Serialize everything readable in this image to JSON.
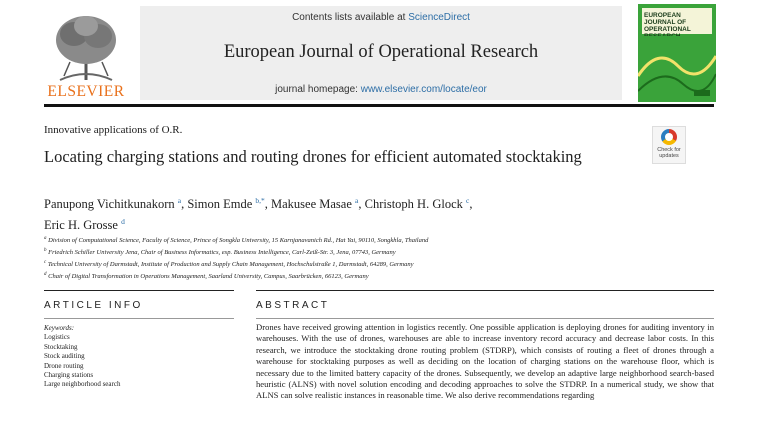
{
  "header": {
    "publisher": "ELSEVIER",
    "contents_prefix": "Contents lists available at ",
    "contents_link": "ScienceDirect",
    "journal_title": "European Journal of Operational Research",
    "homepage_prefix": "journal homepage: ",
    "homepage_link": "www.elsevier.com/locate/eor",
    "cover_title": "EUROPEAN JOURNAL OF OPERATIONAL RESEARCH",
    "colors": {
      "publisher_orange": "#e9711c",
      "link_blue": "#2d6ea6",
      "cover_green": "#3aa33a"
    }
  },
  "section_label": "Innovative applications of O.R.",
  "crossmark": {
    "label": "Check for updates"
  },
  "paper": {
    "title": "Locating charging stations and routing drones for efficient automated stocktaking",
    "authors": [
      {
        "name": "Panupong Vichitkunakorn",
        "sup": "a",
        "sep": ", "
      },
      {
        "name": "Simon Emde",
        "sup": "b,*",
        "sep": ", "
      },
      {
        "name": "Makusee Masae",
        "sup": "a",
        "sep": ", "
      },
      {
        "name": "Christoph H. Glock",
        "sup": "c",
        "sep": ", "
      },
      {
        "name": "Eric H. Grosse",
        "sup": "d",
        "sep": ""
      }
    ],
    "affiliations": [
      {
        "sup": "a",
        "text": "Division of Computational Science, Faculty of Science, Prince of Songkla University, 15 Karnjanavanich Rd., Hat Yai, 90110, Songkhla, Thailand"
      },
      {
        "sup": "b",
        "text": "Friedrich Schiller University Jena, Chair of Business Informatics, esp. Business Intelligence, Carl-Zeiß-Str. 3, Jena, 07743, Germany"
      },
      {
        "sup": "c",
        "text": "Technical University of Darmstadt, Institute of Production and Supply Chain Management, Hochschulstraße 1, Darmstadt, 64289, Germany"
      },
      {
        "sup": "d",
        "text": "Chair of Digital Transformation in Operations Management, Saarland University, Campus, Saarbrücken, 66123, Germany"
      }
    ]
  },
  "article_info": {
    "heading": "ARTICLE INFO",
    "keywords_heading": "Keywords:",
    "keywords": [
      "Logistics",
      "Stocktaking",
      "Stock auditing",
      "Drone routing",
      "Charging stations",
      "Large neighborhood search"
    ]
  },
  "abstract": {
    "heading": "ABSTRACT",
    "text": "Drones have received growing attention in logistics recently. One possible application is deploying drones for auditing inventory in warehouses. With the use of drones, warehouses are able to increase inventory record accuracy and decrease labor costs. In this research, we introduce the stocktaking drone routing problem (STDRP), which consists of routing a fleet of drones through a warehouse for stocktaking purposes as well as deciding on the location of charging stations on the warehouse floor, which is necessary due to the limited battery capacity of the drones. Subsequently, we develop an adaptive large neighborhood search-based heuristic (ALNS) with novel solution encoding and decoding approaches to solve the STDRP. In a numerical study, we show that ALNS can solve realistic instances in reasonable time. We also derive recommendations regarding"
  }
}
